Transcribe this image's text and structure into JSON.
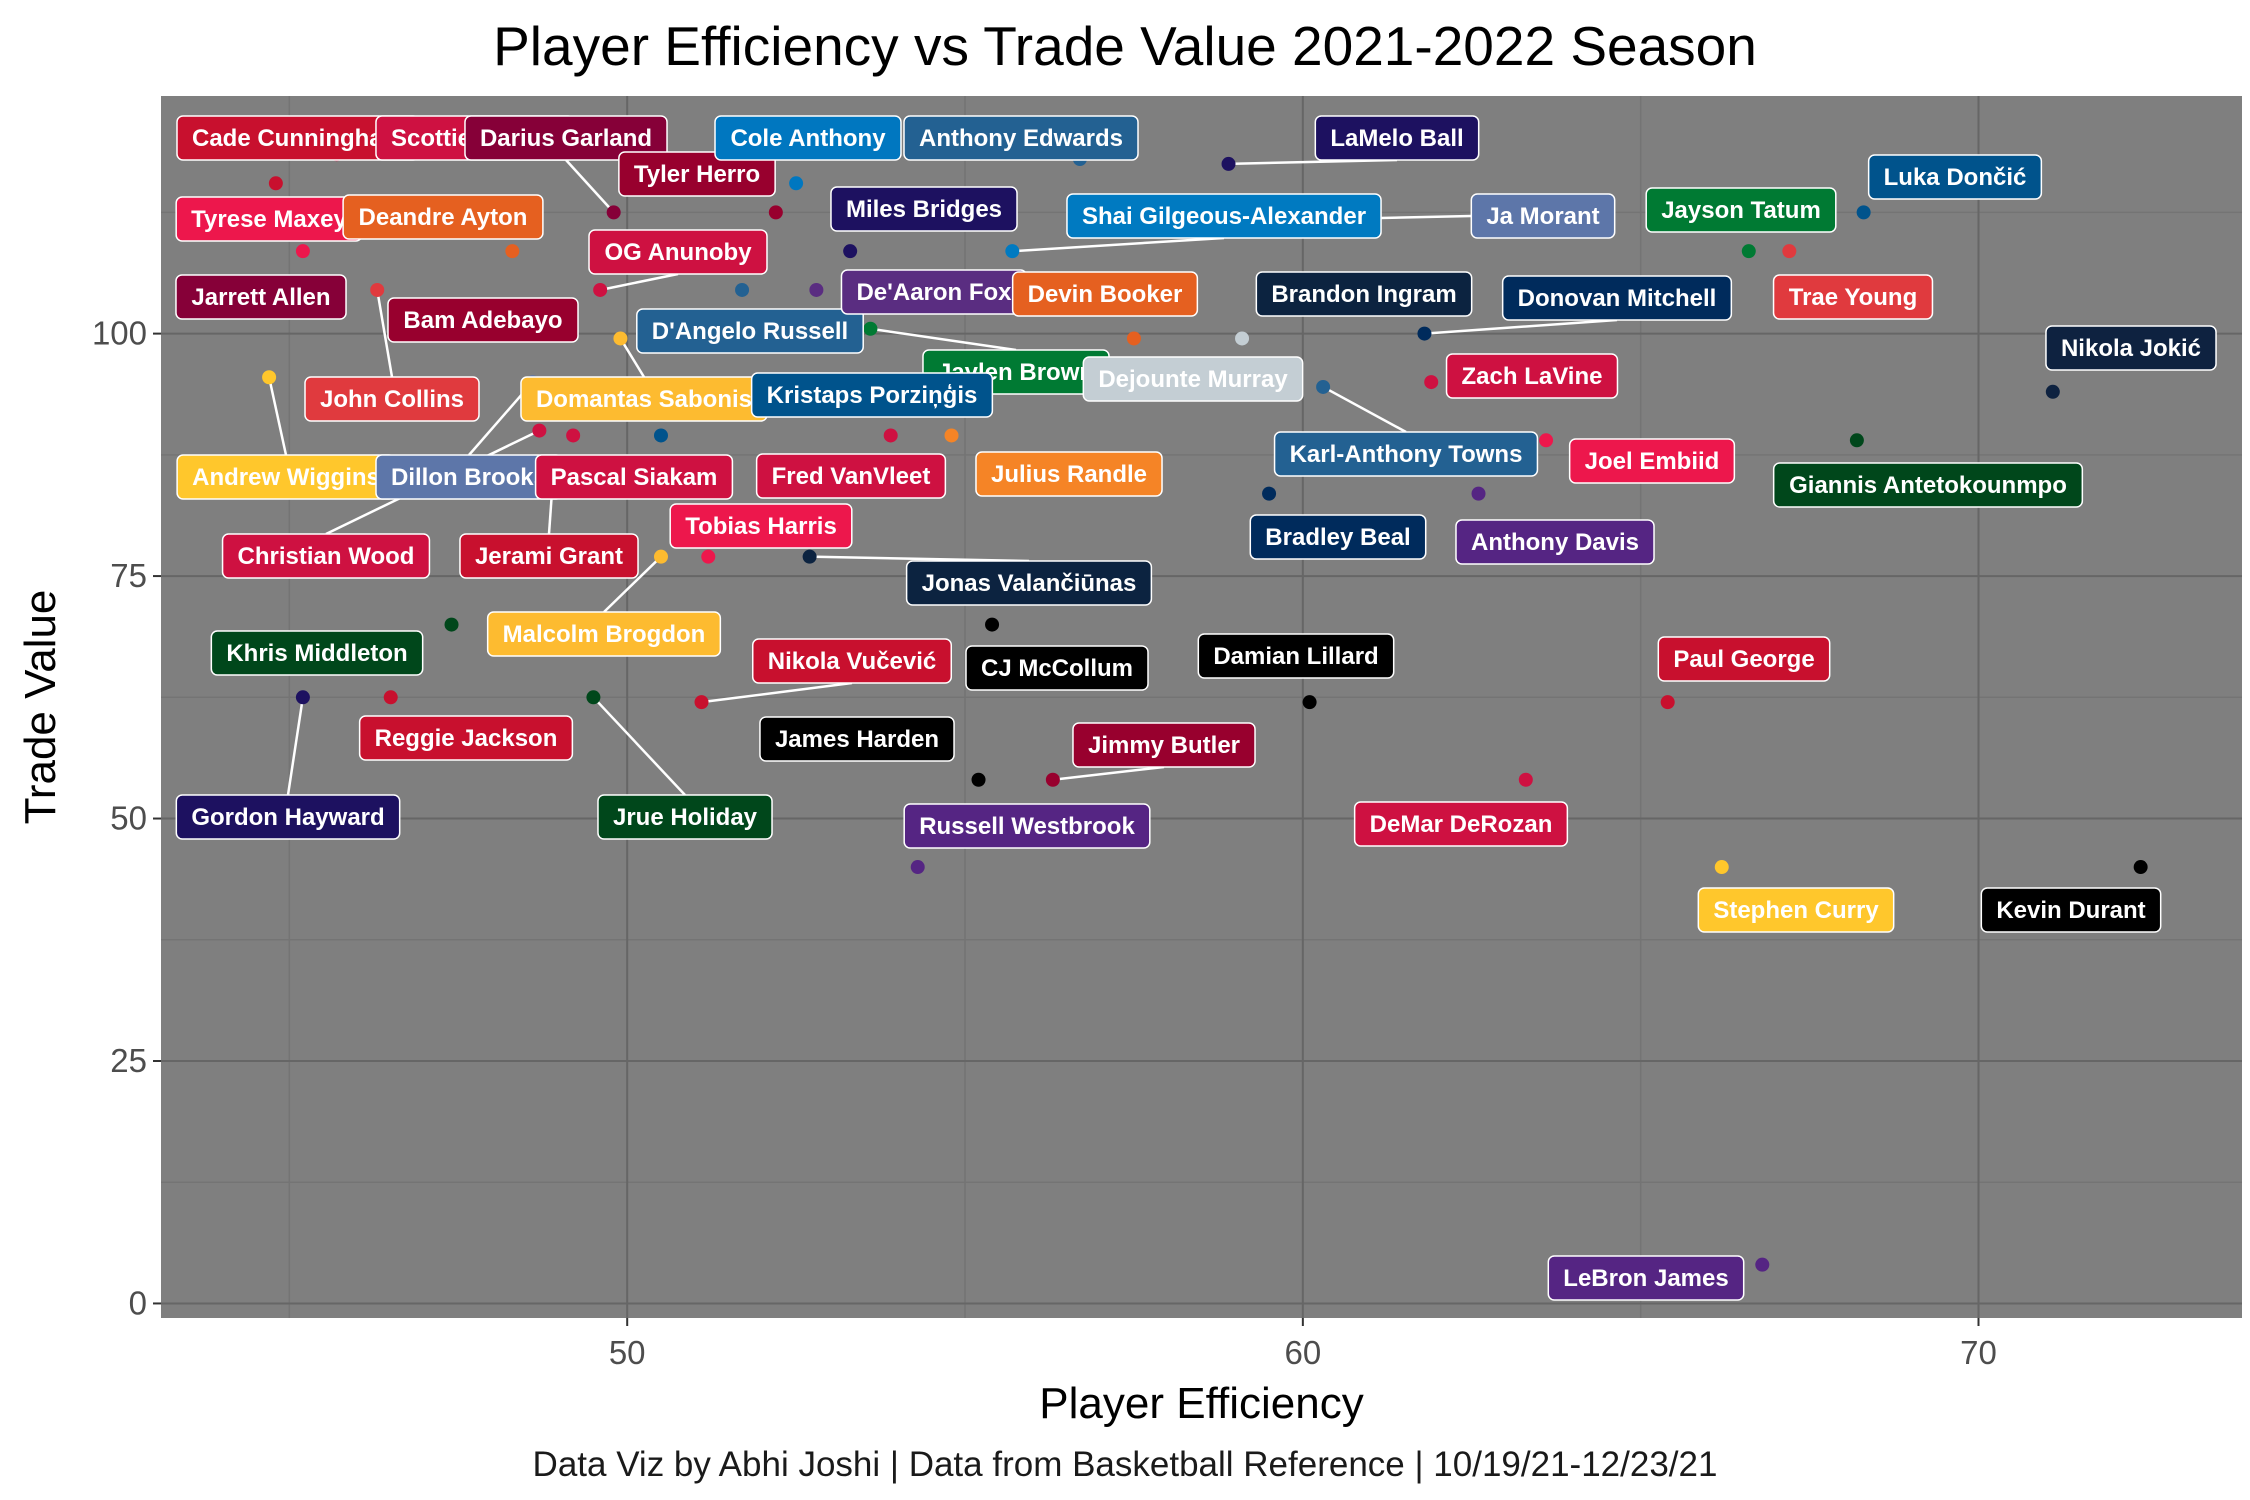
{
  "chart_data": {
    "type": "scatter",
    "title": "Player Efficiency vs Trade Value 2021-2022 Season",
    "xlabel": "Player Efficiency",
    "ylabel": "Trade Value",
    "caption": "Data Viz by Abhi Joshi | Data from Basketball Reference | 10/19/21-12/23/21",
    "xlim": [
      43.1,
      73.9
    ],
    "ylim": [
      -1.5,
      124.5
    ],
    "x_ticks": [
      50,
      60,
      70
    ],
    "y_ticks": [
      0,
      25,
      50,
      75,
      100
    ],
    "grid": true,
    "panel_background": "#7f7f7f",
    "points": [
      {
        "name": "Cade Cunningham",
        "x": 44.8,
        "y": 115.5,
        "color": "#C8102E"
      },
      {
        "name": "Scottie Barnes",
        "x": 45.7,
        "y": 118.5,
        "color": "#CE1141"
      },
      {
        "name": "Darius Garland",
        "x": 49.8,
        "y": 112.5,
        "color": "#860038"
      },
      {
        "name": "Tyler Herro",
        "x": 52.2,
        "y": 112.5,
        "color": "#98002E"
      },
      {
        "name": "Cole Anthony",
        "x": 52.5,
        "y": 115.5,
        "color": "#0077C0"
      },
      {
        "name": "Anthony Edwards",
        "x": 56.7,
        "y": 118.0,
        "color": "#236192"
      },
      {
        "name": "LaMelo Ball",
        "x": 58.9,
        "y": 117.5,
        "color": "#1D1160"
      },
      {
        "name": "Luka Dončić",
        "x": 68.3,
        "y": 112.5,
        "color": "#00538C"
      },
      {
        "name": "Tyrese Maxey",
        "x": 45.2,
        "y": 108.5,
        "color": "#ED174C"
      },
      {
        "name": "Deandre Ayton",
        "x": 48.3,
        "y": 108.5,
        "color": "#E56020"
      },
      {
        "name": "Miles Bridges",
        "x": 53.3,
        "y": 108.5,
        "color": "#1D1160"
      },
      {
        "name": "Shai Gilgeous-Alexander",
        "x": 55.7,
        "y": 108.5,
        "color": "#007AC1"
      },
      {
        "name": "Ja Morant",
        "x": 58.3,
        "y": 111.5,
        "color": "#5D76A9"
      },
      {
        "name": "Jayson Tatum",
        "x": 66.6,
        "y": 108.5,
        "color": "#007A33"
      },
      {
        "name": "Trae Young",
        "x": 67.2,
        "y": 108.5,
        "color": "#E03A3E"
      },
      {
        "name": "Jarrett Allen",
        "x": 44.9,
        "y": 104.0,
        "color": "#860038"
      },
      {
        "name": "John Collins",
        "x": 46.3,
        "y": 104.5,
        "color": "#E03A3E"
      },
      {
        "name": "OG Anunoby",
        "x": 49.6,
        "y": 104.5,
        "color": "#CE1141"
      },
      {
        "name": "Bam Adebayo",
        "x": 48.5,
        "y": 100.0,
        "color": "#98002E"
      },
      {
        "name": "D'Angelo Russell",
        "x": 51.7,
        "y": 104.5,
        "color": "#236192"
      },
      {
        "name": "De'Aaron Fox",
        "x": 52.8,
        "y": 104.5,
        "color": "#5A2D81"
      },
      {
        "name": "Devin Booker",
        "x": 57.5,
        "y": 99.5,
        "color": "#E56020"
      },
      {
        "name": "Jaylen Brown",
        "x": 53.6,
        "y": 100.5,
        "color": "#007A33"
      },
      {
        "name": "Dejounte Murray",
        "x": 59.1,
        "y": 99.5,
        "color": "#C4CED4"
      },
      {
        "name": "Brandon Ingram",
        "x": 59.1,
        "y": 95.5,
        "color": "#0C2340"
      },
      {
        "name": "Donovan Mitchell",
        "x": 61.8,
        "y": 100.0,
        "color": "#002B5C"
      },
      {
        "name": "Nikola Jokić",
        "x": 71.1,
        "y": 94.0,
        "color": "#0E2240"
      },
      {
        "name": "Andrew Wiggins",
        "x": 44.7,
        "y": 95.5,
        "color": "#FFC72C"
      },
      {
        "name": "Domantas Sabonis",
        "x": 49.9,
        "y": 99.5,
        "color": "#FDBB30"
      },
      {
        "name": "Kristaps Porziņģis",
        "x": 50.5,
        "y": 89.5,
        "color": "#00538C"
      },
      {
        "name": "Dillon Brooks",
        "x": 48.6,
        "y": 95.0,
        "color": "#5D76A9"
      },
      {
        "name": "Pascal Siakam",
        "x": 49.2,
        "y": 89.5,
        "color": "#CE1141"
      },
      {
        "name": "Fred VanVleet",
        "x": 53.9,
        "y": 89.5,
        "color": "#CE1141"
      },
      {
        "name": "Julius Randle",
        "x": 54.8,
        "y": 89.5,
        "color": "#F58426"
      },
      {
        "name": "Zach LaVine",
        "x": 61.9,
        "y": 95.0,
        "color": "#CE1141"
      },
      {
        "name": "Karl-Anthony Towns",
        "x": 60.3,
        "y": 94.5,
        "color": "#236192"
      },
      {
        "name": "Joel Embiid",
        "x": 63.6,
        "y": 89.0,
        "color": "#ED174C"
      },
      {
        "name": "Giannis Antetokounmpo",
        "x": 68.2,
        "y": 89.0,
        "color": "#00471B"
      },
      {
        "name": "Christian Wood",
        "x": 48.7,
        "y": 90.0,
        "color": "#CE1141"
      },
      {
        "name": "Jerami Grant",
        "x": 48.9,
        "y": 85.0,
        "color": "#C8102E"
      },
      {
        "name": "Tobias Harris",
        "x": 51.2,
        "y": 77.0,
        "color": "#ED174C"
      },
      {
        "name": "Bradley Beal",
        "x": 59.5,
        "y": 83.5,
        "color": "#002B5C"
      },
      {
        "name": "Anthony Davis",
        "x": 62.6,
        "y": 83.5,
        "color": "#552583"
      },
      {
        "name": "Jonas Valančiūnas",
        "x": 52.7,
        "y": 77.0,
        "color": "#0C2340"
      },
      {
        "name": "Malcolm Brogdon",
        "x": 50.5,
        "y": 77.0,
        "color": "#FDBB30"
      },
      {
        "name": "Khris Middleton",
        "x": 47.4,
        "y": 70.0,
        "color": "#00471B"
      },
      {
        "name": "CJ McCollum",
        "x": 55.4,
        "y": 70.0,
        "color": "#000000"
      },
      {
        "name": "Nikola Vučević",
        "x": 51.1,
        "y": 62.0,
        "color": "#C8102E"
      },
      {
        "name": "Damian Lillard",
        "x": 60.1,
        "y": 62.0,
        "color": "#000000"
      },
      {
        "name": "Paul George",
        "x": 65.4,
        "y": 62.0,
        "color": "#C8102E"
      },
      {
        "name": "Gordon Hayward",
        "x": 45.2,
        "y": 62.5,
        "color": "#1D1160"
      },
      {
        "name": "Reggie Jackson",
        "x": 46.5,
        "y": 62.5,
        "color": "#C8102E"
      },
      {
        "name": "Jrue Holiday",
        "x": 49.5,
        "y": 62.5,
        "color": "#00471B"
      },
      {
        "name": "James Harden",
        "x": 55.2,
        "y": 54.0,
        "color": "#000000"
      },
      {
        "name": "Jimmy Butler",
        "x": 56.3,
        "y": 54.0,
        "color": "#98002E"
      },
      {
        "name": "DeMar DeRozan",
        "x": 63.3,
        "y": 54.0,
        "color": "#CE1141"
      },
      {
        "name": "Russell Westbrook",
        "x": 54.3,
        "y": 45.0,
        "color": "#552583"
      },
      {
        "name": "Stephen Curry",
        "x": 66.2,
        "y": 45.0,
        "color": "#FFC72C"
      },
      {
        "name": "Kevin Durant",
        "x": 72.4,
        "y": 45.0,
        "color": "#000000"
      },
      {
        "name": "LeBron James",
        "x": 66.8,
        "y": 4.0,
        "color": "#552583"
      }
    ]
  }
}
